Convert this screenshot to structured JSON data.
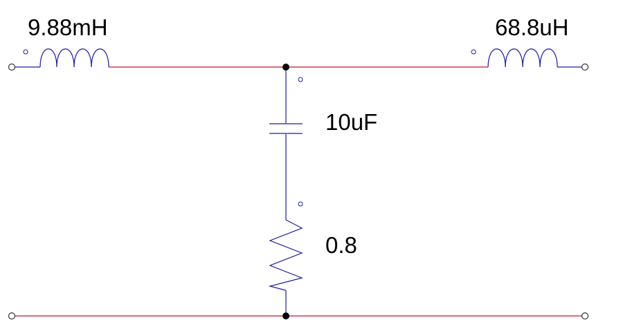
{
  "schematic": {
    "components": {
      "inductor_left": {
        "type": "inductor",
        "label": "9.88mH"
      },
      "inductor_right": {
        "type": "inductor",
        "label": "68.8uH"
      },
      "capacitor": {
        "type": "capacitor",
        "label": "10uF"
      },
      "resistor": {
        "type": "resistor",
        "label": "0.8"
      }
    },
    "colors": {
      "wire": "#c8102e",
      "component": "#1a1aa6",
      "junction": "#000000",
      "label": "#000000"
    }
  }
}
